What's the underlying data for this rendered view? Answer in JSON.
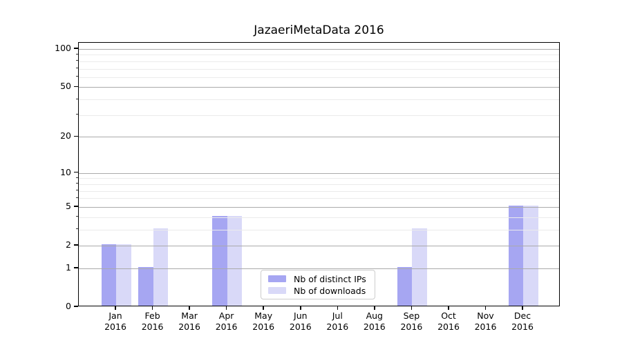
{
  "title": "JazaeriMetaData 2016",
  "chart_data": {
    "type": "bar",
    "title": "JazaeriMetaData 2016",
    "categories": [
      "Jan 2016",
      "Feb 2016",
      "Mar 2016",
      "Apr 2016",
      "May 2016",
      "Jun 2016",
      "Jul 2016",
      "Aug 2016",
      "Sep 2016",
      "Oct 2016",
      "Nov 2016",
      "Dec 2016"
    ],
    "x_tick_months": [
      "Jan",
      "Feb",
      "Mar",
      "Apr",
      "May",
      "Jun",
      "Jul",
      "Aug",
      "Sep",
      "Oct",
      "Nov",
      "Dec"
    ],
    "x_tick_year": "2016",
    "series": [
      {
        "name": "Nb of distinct IPs",
        "color": "#a6a6f2",
        "values": [
          2,
          1,
          0,
          4,
          0,
          0,
          0,
          0,
          1,
          0,
          0,
          5
        ]
      },
      {
        "name": "Nb of downloads",
        "color": "#d9d9f8",
        "values": [
          2,
          3,
          0,
          4,
          0,
          0,
          0,
          0,
          3,
          0,
          0,
          5
        ]
      }
    ],
    "y_axis": {
      "scale": "log1p",
      "major_ticks": [
        0,
        1,
        2,
        5,
        10,
        20,
        50,
        100
      ],
      "major_tick_labels": [
        "0",
        "1",
        "2",
        "5",
        "10",
        "20",
        "50",
        "100"
      ],
      "minor_ticks": [
        3,
        4,
        6,
        7,
        8,
        9,
        30,
        40,
        60,
        70,
        80,
        90
      ],
      "range": [
        0,
        112
      ]
    },
    "grid": true,
    "legend_position": "lower center inside"
  },
  "legend": {
    "items": [
      {
        "label": "Nb of distinct IPs",
        "color": "#a6a6f2"
      },
      {
        "label": "Nb of downloads",
        "color": "#d9d9f8"
      }
    ]
  },
  "colors": {
    "major_grid": "#aaaaaa",
    "minor_grid": "#ebebeb",
    "spine": "#000000"
  }
}
